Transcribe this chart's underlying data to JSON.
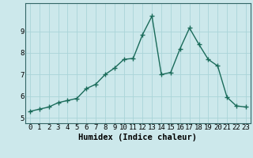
{
  "x": [
    0,
    1,
    2,
    3,
    4,
    5,
    6,
    7,
    8,
    9,
    10,
    11,
    12,
    13,
    14,
    15,
    16,
    17,
    18,
    19,
    20,
    21,
    22,
    23
  ],
  "y": [
    5.3,
    5.4,
    5.5,
    5.7,
    5.8,
    5.9,
    6.35,
    6.55,
    7.0,
    7.3,
    7.7,
    7.75,
    8.85,
    9.7,
    7.0,
    7.1,
    8.2,
    9.15,
    8.4,
    7.7,
    7.4,
    5.95,
    5.55,
    5.5
  ],
  "line_color": "#1a6b5a",
  "marker": "+",
  "marker_size": 4,
  "marker_lw": 1.0,
  "bg_color": "#cce8eb",
  "grid_color": "#aad4d8",
  "xlabel": "Humidex (Indice chaleur)",
  "xlim": [
    -0.5,
    23.5
  ],
  "ylim": [
    4.75,
    10.3
  ],
  "yticks": [
    5,
    6,
    7,
    8,
    9
  ],
  "xticks": [
    0,
    1,
    2,
    3,
    4,
    5,
    6,
    7,
    8,
    9,
    10,
    11,
    12,
    13,
    14,
    15,
    16,
    17,
    18,
    19,
    20,
    21,
    22,
    23
  ],
  "xlabel_fontsize": 7.5,
  "tick_fontsize": 6.5,
  "line_width": 1.0,
  "spine_color": "#336666"
}
